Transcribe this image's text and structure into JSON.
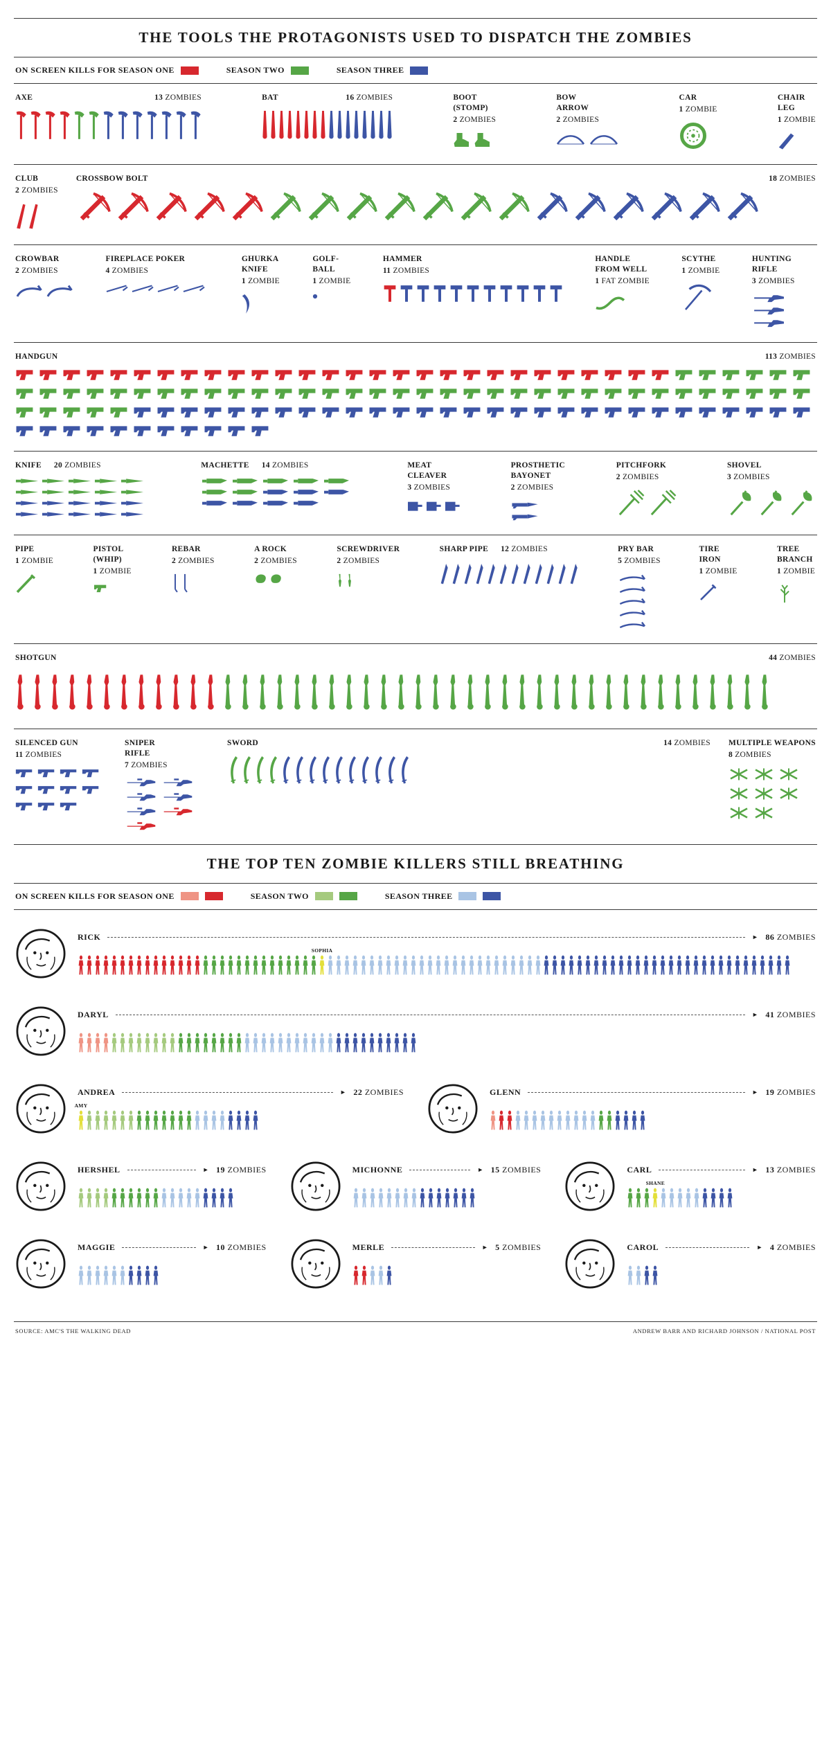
{
  "title1": "THE TOOLS THE PROTAGONISTS USED TO DISPATCH THE ZOMBIES",
  "title2": "THE TOP TEN ZOMBIE KILLERS STILL BREATHING",
  "colors": {
    "s1": "#d7282e",
    "s2": "#56a646",
    "s3": "#3d55a5",
    "s1_light": "#ef9484",
    "s2_light": "#a5ca7e",
    "s3_light": "#a9c4e4",
    "special": "#e3df3a"
  },
  "legend1": {
    "items": [
      {
        "label": "ON SCREEN KILLS FOR SEASON ONE",
        "colors": [
          "s1"
        ]
      },
      {
        "label": "SEASON TWO",
        "colors": [
          "s2"
        ]
      },
      {
        "label": "SEASON THREE",
        "colors": [
          "s3"
        ]
      }
    ]
  },
  "legend2": {
    "items": [
      {
        "label": "ON SCREEN KILLS FOR SEASON ONE",
        "colors": [
          "s1_light",
          "s1"
        ]
      },
      {
        "label": "SEASON TWO",
        "colors": [
          "s2_light",
          "s2"
        ]
      },
      {
        "label": "SEASON THREE",
        "colors": [
          "s3_light",
          "s3"
        ]
      }
    ]
  },
  "misc": {
    "arrow": "►"
  },
  "weapon_rows": [
    [
      {
        "id": "axe",
        "name": "AXE",
        "count": "13",
        "unit": "ZOMBIES",
        "icon": "axe-icon",
        "segments": [
          [
            "s1",
            4
          ],
          [
            "s2",
            2
          ],
          [
            "s3",
            7
          ]
        ]
      },
      {
        "id": "bat",
        "name": "BAT",
        "count": "16",
        "unit": "ZOMBIES",
        "icon": "bat-icon",
        "segments": [
          [
            "s1",
            8
          ],
          [
            "s3",
            8
          ]
        ]
      },
      {
        "id": "boot",
        "name": "BOOT (STOMP)",
        "count": "2",
        "unit": "ZOMBIES",
        "icon": "boot-icon",
        "segments": [
          [
            "s2",
            2
          ]
        ]
      },
      {
        "id": "bow_arrow",
        "name": "BOW ARROW",
        "count": "2",
        "unit": "ZOMBIES",
        "icon": "bow-icon",
        "segments": [
          [
            "s3",
            2
          ]
        ]
      },
      {
        "id": "car",
        "name": "CAR",
        "count": "1",
        "unit": "ZOMBIE",
        "icon": "car-wheel-icon",
        "segments": [
          [
            "s2",
            1
          ]
        ]
      },
      {
        "id": "chair_leg",
        "name": "CHAIR LEG",
        "count": "1",
        "unit": "ZOMBIE",
        "icon": "chair-leg-icon",
        "segments": [
          [
            "s3",
            1
          ]
        ]
      }
    ],
    [
      {
        "id": "club",
        "name": "CLUB",
        "count": "2",
        "unit": "ZOMBIES",
        "icon": "club-icon",
        "segments": [
          [
            "s1",
            2
          ]
        ]
      },
      {
        "id": "crossbow",
        "name": "CROSSBOW BOLT",
        "count": "18",
        "unit": "ZOMBIES",
        "icon": "crossbow-icon",
        "segments": [
          [
            "s1",
            5
          ],
          [
            "s2",
            7
          ],
          [
            "s3",
            6
          ]
        ]
      }
    ],
    [
      {
        "id": "crowbar",
        "name": "CROWBAR",
        "count": "2",
        "unit": "ZOMBIES",
        "icon": "crowbar-icon",
        "segments": [
          [
            "s3",
            2
          ]
        ]
      },
      {
        "id": "poker",
        "name": "FIREPLACE POKER",
        "count": "4",
        "unit": "ZOMBIES",
        "icon": "poker-icon",
        "segments": [
          [
            "s3",
            4
          ]
        ]
      },
      {
        "id": "ghurka",
        "name": "GHURKA KNIFE",
        "count": "1",
        "unit": "ZOMBIE",
        "icon": "ghurka-knife-icon",
        "segments": [
          [
            "s3",
            1
          ]
        ]
      },
      {
        "id": "golfball",
        "name": "GOLF-BALL",
        "count": "1",
        "unit": "ZOMBIE",
        "icon": "golf-ball-icon",
        "segments": [
          [
            "s3",
            1
          ]
        ]
      },
      {
        "id": "hammer",
        "name": "HAMMER",
        "count": "11",
        "unit": "ZOMBIES",
        "icon": "hammer-icon",
        "segments": [
          [
            "s1",
            1
          ],
          [
            "s3",
            10
          ]
        ]
      },
      {
        "id": "well_handle",
        "name": "HANDLE FROM WELL",
        "count": "1",
        "unit": "FAT ZOMBIE",
        "icon": "well-handle-icon",
        "segments": [
          [
            "s2",
            1
          ]
        ]
      },
      {
        "id": "scythe",
        "name": "SCYTHE",
        "count": "1",
        "unit": "ZOMBIE",
        "icon": "scythe-icon",
        "segments": [
          [
            "s3",
            1
          ]
        ]
      },
      {
        "id": "hunting_rifle",
        "name": "HUNTING RIFLE",
        "count": "3",
        "unit": "ZOMBIES",
        "icon": "hunting-rifle-icon",
        "segments": [
          [
            "s3",
            3
          ]
        ]
      }
    ],
    [
      {
        "id": "handgun",
        "name": "HANDGUN",
        "count": "113",
        "unit": "ZOMBIES",
        "icon": "handgun-icon",
        "segments": [
          [
            "s1",
            28
          ],
          [
            "s2",
            45
          ],
          [
            "s3",
            40
          ]
        ]
      }
    ],
    [
      {
        "id": "knife",
        "name": "KNIFE",
        "count": "20",
        "unit": "ZOMBIES",
        "icon": "knife-icon",
        "segments": [
          [
            "s2",
            10
          ],
          [
            "s3",
            10
          ]
        ]
      },
      {
        "id": "machette",
        "name": "MACHETTE",
        "count": "14",
        "unit": "ZOMBIES",
        "icon": "machette-icon",
        "segments": [
          [
            "s2",
            7
          ],
          [
            "s3",
            7
          ]
        ]
      },
      {
        "id": "cleaver",
        "name": "MEAT CLEAVER",
        "count": "3",
        "unit": "ZOMBIES",
        "icon": "meat-cleaver-icon",
        "segments": [
          [
            "s3",
            3
          ]
        ]
      },
      {
        "id": "bayonet",
        "name": "PROSTHETIC BAYONET",
        "count": "2",
        "unit": "ZOMBIES",
        "icon": "bayonet-icon",
        "segments": [
          [
            "s3",
            2
          ]
        ]
      },
      {
        "id": "pitchfork",
        "name": "PITCHFORK",
        "count": "2",
        "unit": "ZOMBIES",
        "icon": "pitchfork-icon",
        "segments": [
          [
            "s2",
            2
          ]
        ]
      },
      {
        "id": "shovel",
        "name": "SHOVEL",
        "count": "3",
        "unit": "ZOMBIES",
        "icon": "shovel-icon",
        "segments": [
          [
            "s2",
            3
          ]
        ]
      }
    ],
    [
      {
        "id": "pipe",
        "name": "PIPE",
        "count": "1",
        "unit": "ZOMBIE",
        "icon": "pipe-icon",
        "segments": [
          [
            "s2",
            1
          ]
        ]
      },
      {
        "id": "pistol_whip",
        "name": "PISTOL (WHIP)",
        "count": "1",
        "unit": "ZOMBIE",
        "icon": "pistol-icon",
        "segments": [
          [
            "s2",
            1
          ]
        ]
      },
      {
        "id": "rebar",
        "name": "REBAR",
        "count": "2",
        "unit": "ZOMBIES",
        "icon": "rebar-icon",
        "segments": [
          [
            "s3",
            2
          ]
        ]
      },
      {
        "id": "rock",
        "name": "A ROCK",
        "count": "2",
        "unit": "ZOMBIES",
        "icon": "rock-icon",
        "segments": [
          [
            "s2",
            2
          ]
        ]
      },
      {
        "id": "screwdriver",
        "name": "SCREWDRIVER",
        "count": "2",
        "unit": "ZOMBIES",
        "icon": "screwdriver-icon",
        "segments": [
          [
            "s2",
            2
          ]
        ]
      },
      {
        "id": "sharp_pipe",
        "name": "SHARP PIPE",
        "count": "12",
        "unit": "ZOMBIES",
        "icon": "sharp-pipe-icon",
        "segments": [
          [
            "s3",
            12
          ]
        ]
      },
      {
        "id": "pry_bar",
        "name": "PRY BAR",
        "count": "5",
        "unit": "ZOMBIES",
        "icon": "pry-bar-icon",
        "segments": [
          [
            "s3",
            5
          ]
        ]
      },
      {
        "id": "tire_iron",
        "name": "TIRE IRON",
        "count": "1",
        "unit": "ZOMBIE",
        "icon": "tire-iron-icon",
        "segments": [
          [
            "s3",
            1
          ]
        ]
      },
      {
        "id": "branch",
        "name": "TREE BRANCH",
        "count": "1",
        "unit": "ZOMBIE",
        "icon": "tree-branch-icon",
        "segments": [
          [
            "s2",
            1
          ]
        ]
      }
    ],
    [
      {
        "id": "shotgun",
        "name": "SHOTGUN",
        "count": "44",
        "unit": "ZOMBIES",
        "icon": "shotgun-icon",
        "segments": [
          [
            "s1",
            12
          ],
          [
            "s2",
            32
          ]
        ]
      }
    ],
    [
      {
        "id": "silenced",
        "name": "SILENCED GUN",
        "count": "11",
        "unit": "ZOMBIES",
        "icon": "silenced-gun-icon",
        "segments": [
          [
            "s3",
            11
          ]
        ]
      },
      {
        "id": "sniper",
        "name": "SNIPER RIFLE",
        "count": "7",
        "unit": "ZOMBIES",
        "icon": "sniper-rifle-icon",
        "segments": [
          [
            "s3",
            5
          ],
          [
            "s1",
            2
          ]
        ]
      },
      {
        "id": "sword",
        "name": "SWORD",
        "count": "14",
        "unit": "ZOMBIES",
        "icon": "sword-icon",
        "segments": [
          [
            "s2",
            4
          ],
          [
            "s3",
            10
          ]
        ]
      },
      {
        "id": "multi",
        "name": "MULTIPLE WEAPONS",
        "count": "8",
        "unit": "ZOMBIES",
        "icon": "multiple-weapons-icon",
        "segments": [
          [
            "s2",
            8
          ]
        ]
      }
    ]
  ],
  "killer_rows": [
    [
      {
        "id": "rick",
        "name": "RICK",
        "count": "86",
        "unit": "ZOMBIES",
        "segments": [
          [
            "s1",
            15
          ],
          [
            "s2",
            14
          ],
          [
            "special",
            1,
            "SOPHIA"
          ],
          [
            "s3_light",
            26
          ],
          [
            "s3",
            30
          ]
        ]
      }
    ],
    [
      {
        "id": "daryl",
        "name": "DARYL",
        "count": "41",
        "unit": "ZOMBIES",
        "segments": [
          [
            "s1_light",
            4
          ],
          [
            "s2_light",
            8
          ],
          [
            "s2",
            8
          ],
          [
            "s3_light",
            11
          ],
          [
            "s3",
            10
          ]
        ]
      }
    ],
    [
      {
        "id": "andrea",
        "name": "ANDREA",
        "count": "22",
        "unit": "ZOMBIES",
        "segments": [
          [
            "special",
            1,
            "AMY"
          ],
          [
            "s2_light",
            6
          ],
          [
            "s2",
            7
          ],
          [
            "s3_light",
            4
          ],
          [
            "s3",
            4
          ]
        ]
      },
      {
        "id": "glenn",
        "name": "GLENN",
        "count": "19",
        "unit": "ZOMBIES",
        "segments": [
          [
            "s1_light",
            1
          ],
          [
            "s1",
            2
          ],
          [
            "s3_light",
            10
          ],
          [
            "s2",
            2
          ],
          [
            "s3",
            4
          ]
        ]
      }
    ],
    [
      {
        "id": "hershel",
        "name": "HERSHEL",
        "count": "19",
        "unit": "ZOMBIES",
        "segments": [
          [
            "s2_light",
            4
          ],
          [
            "s2",
            6
          ],
          [
            "s3_light",
            5
          ],
          [
            "s3",
            4
          ]
        ]
      },
      {
        "id": "michonne",
        "name": "MICHONNE",
        "count": "15",
        "unit": "ZOMBIES",
        "segments": [
          [
            "s3_light",
            8
          ],
          [
            "s3",
            7
          ]
        ]
      },
      {
        "id": "carl",
        "name": "CARL",
        "count": "13",
        "unit": "ZOMBIES",
        "segments": [
          [
            "s2",
            3
          ],
          [
            "special",
            1,
            "SHANE"
          ],
          [
            "s3_light",
            5
          ],
          [
            "s3",
            4
          ]
        ]
      }
    ],
    [
      {
        "id": "maggie",
        "name": "MAGGIE",
        "count": "10",
        "unit": "ZOMBIES",
        "segments": [
          [
            "s3_light",
            6
          ],
          [
            "s3",
            4
          ]
        ]
      },
      {
        "id": "merle",
        "name": "MERLE",
        "count": "5",
        "unit": "ZOMBIES",
        "segments": [
          [
            "s1",
            2
          ],
          [
            "s3_light",
            2
          ],
          [
            "s3",
            1
          ]
        ]
      },
      {
        "id": "carol",
        "name": "CAROL",
        "count": "4",
        "unit": "ZOMBIES",
        "segments": [
          [
            "s3_light",
            2
          ],
          [
            "s3",
            2
          ]
        ]
      }
    ]
  ],
  "footer": {
    "source": "SOURCE: AMC'S  THE WALKING DEAD",
    "credit": "ANDREW BARR AND RICHARD JOHNSON / NATIONAL POST"
  },
  "chart_data": [
    {
      "type": "pictogram",
      "title": "THE TOOLS THE PROTAGONISTS USED TO DISPATCH THE ZOMBIES",
      "unit": "zombies",
      "categories": [
        "AXE",
        "BAT",
        "BOOT (STOMP)",
        "BOW ARROW",
        "CAR",
        "CHAIR LEG",
        "CLUB",
        "CROSSBOW BOLT",
        "CROWBAR",
        "FIREPLACE POKER",
        "GHURKA KNIFE",
        "GOLF-BALL",
        "HAMMER",
        "HANDLE FROM WELL",
        "SCYTHE",
        "HUNTING RIFLE",
        "HANDGUN",
        "KNIFE",
        "MACHETTE",
        "MEAT CLEAVER",
        "PROSTHETIC BAYONET",
        "PITCHFORK",
        "SHOVEL",
        "PIPE",
        "PISTOL (WHIP)",
        "REBAR",
        "A ROCK",
        "SCREWDRIVER",
        "SHARP PIPE",
        "PRY BAR",
        "TIRE IRON",
        "TREE BRANCH",
        "SHOTGUN",
        "SILENCED GUN",
        "SNIPER RIFLE",
        "SWORD",
        "MULTIPLE WEAPONS"
      ],
      "totals": [
        13,
        16,
        2,
        2,
        1,
        1,
        2,
        18,
        2,
        4,
        1,
        1,
        11,
        1,
        1,
        3,
        113,
        20,
        14,
        3,
        2,
        2,
        3,
        1,
        1,
        2,
        2,
        2,
        12,
        5,
        1,
        1,
        44,
        11,
        7,
        14,
        8
      ],
      "series": [
        {
          "name": "Season One",
          "values": [
            4,
            8,
            0,
            0,
            0,
            0,
            2,
            5,
            0,
            0,
            0,
            0,
            1,
            0,
            0,
            0,
            28,
            0,
            0,
            0,
            0,
            0,
            0,
            0,
            0,
            0,
            0,
            0,
            0,
            0,
            0,
            0,
            12,
            0,
            2,
            0,
            0
          ]
        },
        {
          "name": "Season Two",
          "values": [
            2,
            0,
            2,
            0,
            1,
            0,
            0,
            7,
            0,
            0,
            0,
            0,
            0,
            1,
            0,
            0,
            45,
            10,
            7,
            0,
            0,
            2,
            3,
            1,
            1,
            0,
            2,
            2,
            0,
            0,
            0,
            1,
            32,
            0,
            0,
            4,
            8
          ]
        },
        {
          "name": "Season Three",
          "values": [
            7,
            8,
            0,
            2,
            0,
            1,
            0,
            6,
            2,
            4,
            1,
            1,
            10,
            0,
            1,
            3,
            40,
            10,
            7,
            3,
            2,
            0,
            0,
            0,
            0,
            2,
            0,
            0,
            12,
            5,
            1,
            0,
            0,
            11,
            5,
            10,
            0
          ]
        }
      ]
    },
    {
      "type": "pictogram",
      "title": "THE TOP TEN ZOMBIE KILLERS STILL BREATHING",
      "unit": "zombies",
      "categories": [
        "RICK",
        "DARYL",
        "ANDREA",
        "GLENN",
        "HERSHEL",
        "MICHONNE",
        "CARL",
        "MAGGIE",
        "MERLE",
        "CAROL"
      ],
      "totals": [
        86,
        41,
        22,
        19,
        19,
        15,
        13,
        10,
        5,
        4
      ],
      "series": [
        {
          "name": "Season One",
          "values": [
            15,
            4,
            0,
            3,
            0,
            0,
            0,
            0,
            2,
            0
          ]
        },
        {
          "name": "Season Two",
          "values": [
            15,
            16,
            14,
            2,
            10,
            0,
            4,
            0,
            0,
            0
          ]
        },
        {
          "name": "Season Three",
          "values": [
            56,
            21,
            8,
            14,
            9,
            15,
            9,
            10,
            3,
            4
          ]
        }
      ],
      "annotations": [
        "SOPHIA",
        "AMY",
        "SHANE"
      ]
    }
  ]
}
